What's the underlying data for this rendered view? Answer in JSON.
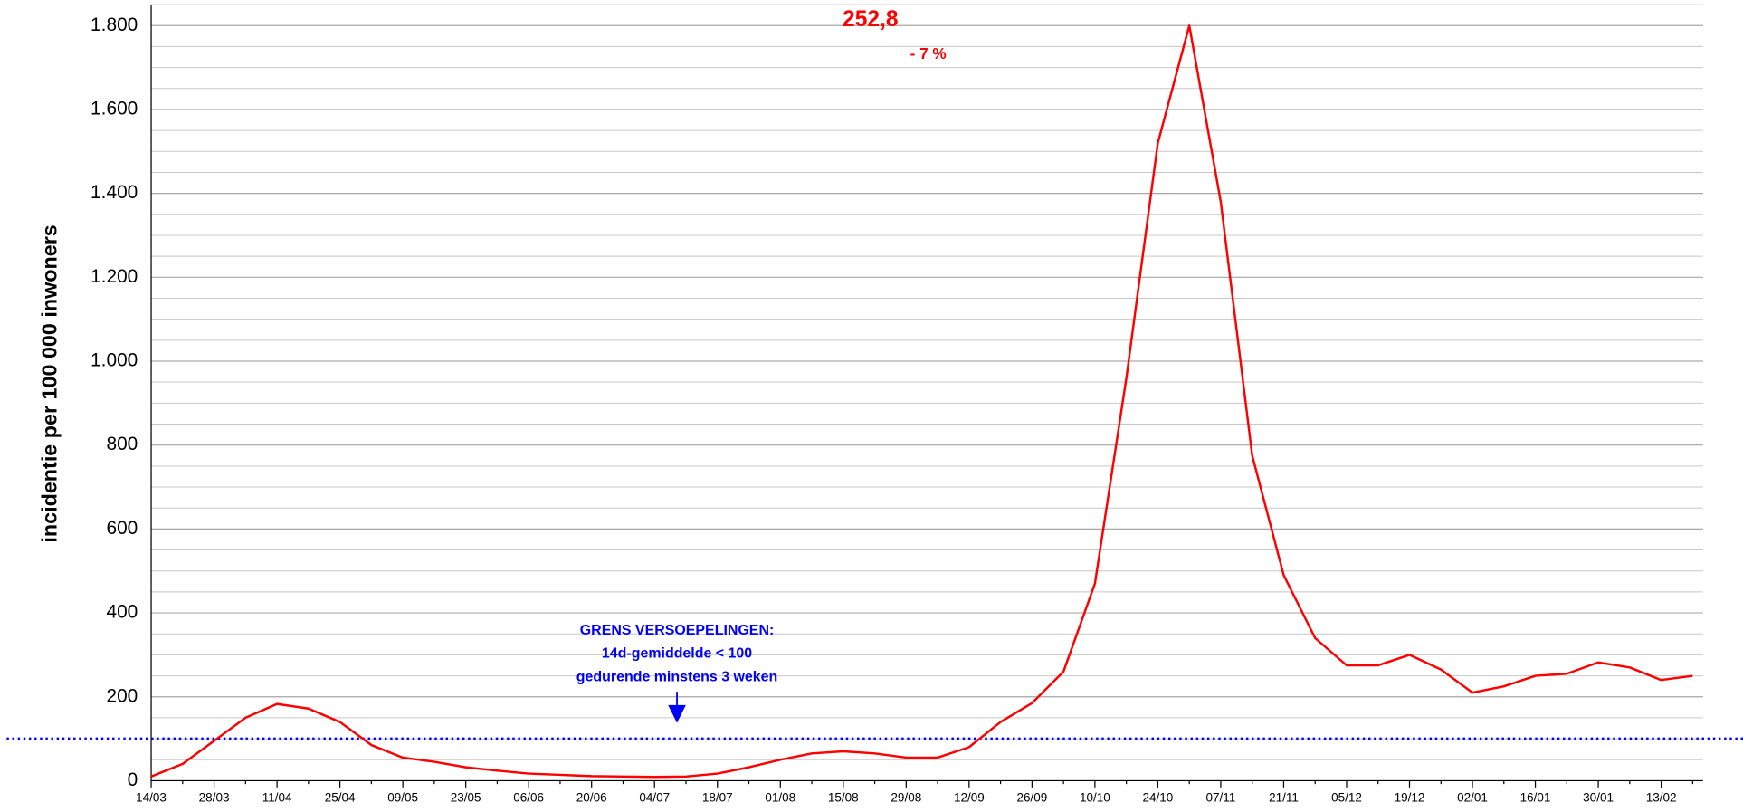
{
  "chart_data": {
    "type": "line",
    "ylabel": "incidentie per 100 000 inwoners",
    "categories": [
      "14/03",
      null,
      "28/03",
      null,
      "11/04",
      null,
      "25/04",
      null,
      "09/05",
      null,
      "23/05",
      null,
      "06/06",
      null,
      "20/06",
      null,
      "04/07",
      null,
      "18/07",
      null,
      "01/08",
      null,
      "15/08",
      null,
      "29/08",
      null,
      "12/09",
      null,
      "26/09",
      null,
      "10/10",
      null,
      "24/10",
      null,
      "07/11",
      null,
      "21/11",
      null,
      "05/12",
      null,
      "19/12",
      null,
      "02/01",
      null,
      "16/01",
      null,
      "30/01",
      null,
      "13/02",
      null
    ],
    "values": [
      10,
      40,
      95,
      150,
      183,
      172,
      140,
      85,
      55,
      45,
      32,
      24,
      17,
      14,
      11,
      10,
      9,
      10,
      17,
      32,
      50,
      65,
      70,
      65,
      55,
      55,
      80,
      140,
      185,
      260,
      470,
      960,
      1520,
      1800,
      1380,
      775,
      490,
      340,
      275,
      275,
      300,
      265,
      210,
      225,
      250,
      255,
      282,
      270,
      240,
      250
    ],
    "color": "#ff0000",
    "ylim": [
      0,
      1850
    ],
    "yticks": [
      0,
      200,
      400,
      600,
      800,
      {
        "value": 1000,
        "label": "1.000"
      },
      {
        "value": 1200,
        "label": "1.200"
      },
      {
        "value": 1400,
        "label": "1.400"
      },
      {
        "value": 1600,
        "label": "1.600"
      },
      {
        "value": 1800,
        "label": "1.800"
      }
    ],
    "minor_grid_step": 50,
    "grid": true,
    "reference_line": {
      "value": 100,
      "color": "#0000ff"
    },
    "annotations": {
      "last_value": "252,8",
      "change": "- 7 %",
      "threshold": [
        "GRENS VERSOEPELINGEN:",
        "14d-gemiddelde < 100",
        "gedurende minstens 3 weken"
      ]
    }
  }
}
